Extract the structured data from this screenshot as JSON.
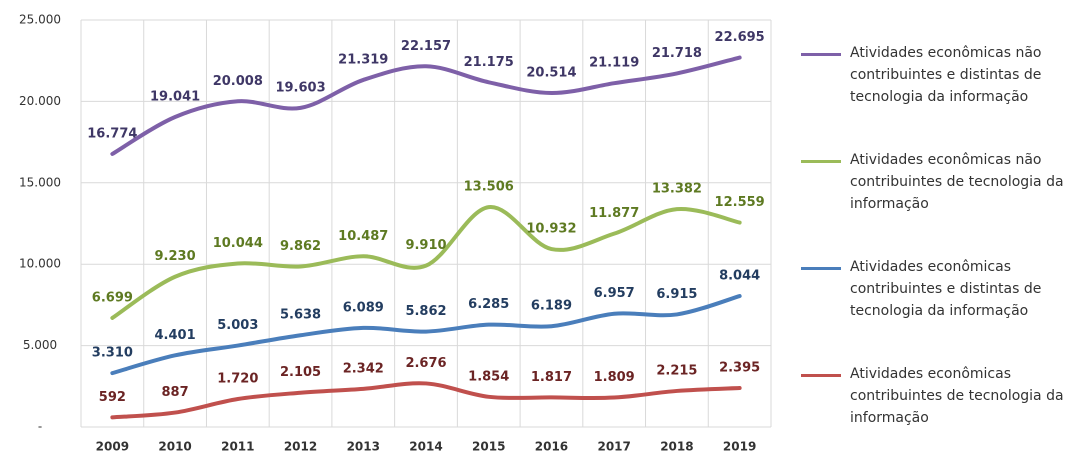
{
  "chart_data": {
    "type": "line",
    "categories": [
      "2009",
      "2010",
      "2011",
      "2012",
      "2013",
      "2014",
      "2015",
      "2016",
      "2017",
      "2018",
      "2019"
    ],
    "ylim": [
      0,
      25000
    ],
    "yticks": [
      {
        "value": 0,
        "label": "-"
      },
      {
        "value": 5000,
        "label": "5.000"
      },
      {
        "value": 10000,
        "label": "10.000"
      },
      {
        "value": 15000,
        "label": "15.000"
      },
      {
        "value": 20000,
        "label": "20.000"
      },
      {
        "value": 25000,
        "label": "25.000"
      }
    ],
    "grid": true,
    "legend": "right",
    "series": [
      {
        "name": "Atividades econômicas não contribuintes e distintas de tecnologia da informação",
        "color": "#7e60a8",
        "label_color": "#3f3766",
        "values": [
          16774,
          19041,
          20008,
          19603,
          21319,
          22157,
          21175,
          20514,
          21119,
          21718,
          22695
        ],
        "value_labels": [
          "16.774",
          "19.041",
          "20.008",
          "19.603",
          "21.319",
          "22.157",
          "21.175",
          "20.514",
          "21.119",
          "21.718",
          "22.695"
        ]
      },
      {
        "name": "Atividades econômicas não contribuintes de tecnologia da informação",
        "color": "#9bbb59",
        "label_color": "#5e7a22",
        "values": [
          6699,
          9230,
          10044,
          9862,
          10487,
          9910,
          13506,
          10932,
          11877,
          13382,
          12559
        ],
        "value_labels": [
          "6.699",
          "9.230",
          "10.044",
          "9.862",
          "10.487",
          "9.910",
          "13.506",
          "10.932",
          "11.877",
          "13.382",
          "12.559"
        ]
      },
      {
        "name": "Atividades econômicas contribuintes e distintas de tecnologia da informação",
        "color": "#4a7ebb",
        "label_color": "#233d60",
        "values": [
          3310,
          4401,
          5003,
          5638,
          6089,
          5862,
          6285,
          6189,
          6957,
          6915,
          8044
        ],
        "value_labels": [
          "3.310",
          "4.401",
          "5.003",
          "5.638",
          "6.089",
          "5.862",
          "6.285",
          "6.189",
          "6.957",
          "6.915",
          "8.044"
        ]
      },
      {
        "name": "Atividades econômicas contribuintes de tecnologia da informação",
        "color": "#c0504d",
        "label_color": "#6b2424",
        "values": [
          592,
          887,
          1720,
          2105,
          2342,
          2676,
          1854,
          1817,
          1809,
          2215,
          2395
        ],
        "value_labels": [
          "592",
          "887",
          "1.720",
          "2.105",
          "2.342",
          "2.676",
          "1.854",
          "1.817",
          "1.809",
          "2.215",
          "2.395"
        ]
      }
    ]
  }
}
